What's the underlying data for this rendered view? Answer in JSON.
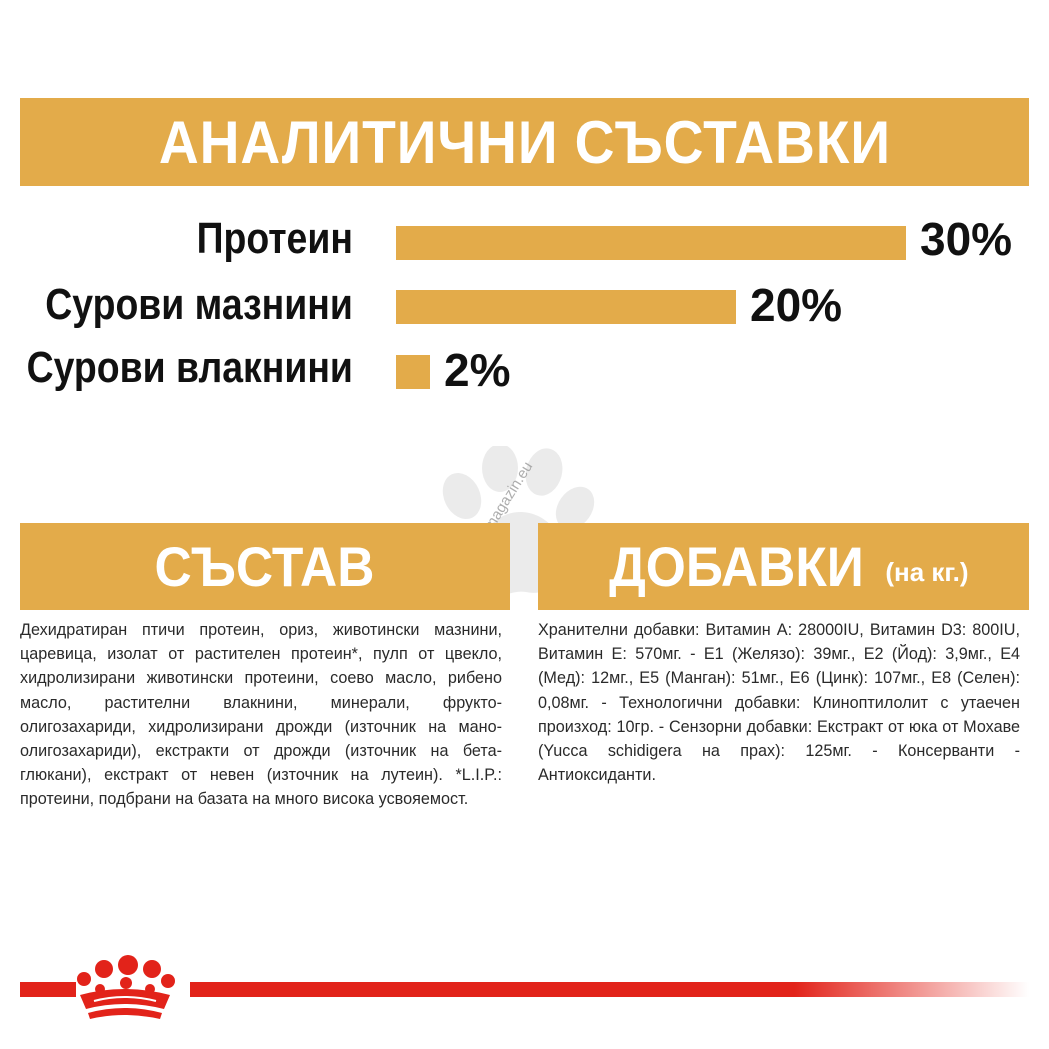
{
  "analytics": {
    "title": "АНАЛИТИЧНИ СЪСТАВКИ",
    "items": [
      {
        "label": "Протеин",
        "percent_text": "30%",
        "value": 30
      },
      {
        "label": "Сурови мазнини",
        "percent_text": "20%",
        "value": 20
      },
      {
        "label": "Сурови влакнини",
        "percent_text": "2%",
        "value": 2
      }
    ]
  },
  "composition": {
    "title": "СЪСТАВ",
    "text": "Дехидратиран птичи протеин, ориз, животински мазнини, царевица, изолат от растителен протеин*, пулп от цвекло, хидролизирани животински протеини, соево масло, рибено масло, растителни влакнини, минерали, фрукто-олигозахариди, хидролизирани дрожди (източник на мано- олигозахариди), екстракти от дрожди (източник на бета- глюкани), екстракт от невен (източник на лутеин). *L.I.P.: протеини, подбрани на базата на много висока усвояемост."
  },
  "additives": {
    "title": "ДОБАВКИ",
    "unit": "(на кг.)",
    "text": "Хранителни добавки: Витамин А: 28000IU, Витамин D3: 800IU, Витамин Е: 570мг. - Е1 (Желязо): 39мг., Е2 (Йод): 3,9мг., Е4 (Мед): 12мг., Е5 (Манган): 51мг., Е6 (Цинк): 107мг., Е8 (Селен): 0,08мг. - Технологични добавки: Клиноптилолит с утаечен произход: 10гр. - Сензорни добавки: Екстракт от юка от Мохаве (Yucca schidigera на прах): 125мг. - Консерванти - Антиоксиданти."
  },
  "watermark": {
    "text": "zoomagazin.eu"
  },
  "colors": {
    "accent": "#e3ab4a",
    "brand_red": "#e2231a",
    "text": "#1a1a1a"
  }
}
